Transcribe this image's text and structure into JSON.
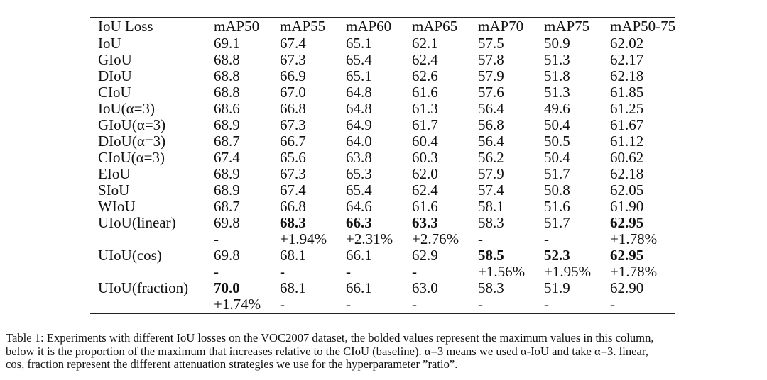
{
  "table": {
    "headers": [
      "IoU Loss",
      "mAP50",
      "mAP55",
      "mAP60",
      "mAP65",
      "mAP70",
      "mAP75",
      "mAP50-75"
    ],
    "rows": [
      {
        "cells": [
          "IoU",
          "69.1",
          "67.4",
          "65.1",
          "62.1",
          "57.5",
          "50.9",
          "62.02"
        ],
        "bold": []
      },
      {
        "cells": [
          "GIoU",
          "68.8",
          "67.3",
          "65.4",
          "62.4",
          "57.8",
          "51.3",
          "62.17"
        ],
        "bold": []
      },
      {
        "cells": [
          "DIoU",
          "68.8",
          "66.9",
          "65.1",
          "62.6",
          "57.9",
          "51.8",
          "62.18"
        ],
        "bold": []
      },
      {
        "cells": [
          "CIoU",
          "68.8",
          "67.0",
          "64.8",
          "61.6",
          "57.6",
          "51.3",
          "61.85"
        ],
        "bold": []
      },
      {
        "cells": [
          "IoU(α=3)",
          "68.6",
          "66.8",
          "64.8",
          "61.3",
          "56.4",
          "49.6",
          "61.25"
        ],
        "bold": []
      },
      {
        "cells": [
          "GIoU(α=3)",
          "68.9",
          "67.3",
          "64.9",
          "61.7",
          "56.8",
          "50.4",
          "61.67"
        ],
        "bold": []
      },
      {
        "cells": [
          "DIoU(α=3)",
          "68.7",
          "66.7",
          "64.0",
          "60.4",
          "56.4",
          "50.5",
          "61.12"
        ],
        "bold": []
      },
      {
        "cells": [
          "CIoU(α=3)",
          "67.4",
          "65.6",
          "63.8",
          "60.3",
          "56.2",
          "50.4",
          "60.62"
        ],
        "bold": []
      },
      {
        "cells": [
          "EIoU",
          "68.9",
          "67.3",
          "65.3",
          "62.0",
          "57.9",
          "51.7",
          "62.18"
        ],
        "bold": []
      },
      {
        "cells": [
          "SIoU",
          "68.9",
          "67.4",
          "65.4",
          "62.4",
          "57.4",
          "50.8",
          "62.05"
        ],
        "bold": []
      },
      {
        "cells": [
          "WIoU",
          "68.7",
          "66.8",
          "64.6",
          "61.6",
          "58.1",
          "51.6",
          "61.90"
        ],
        "bold": []
      },
      {
        "cells": [
          "UIoU(linear)",
          "69.8",
          "68.3",
          "66.3",
          "63.3",
          "58.3",
          "51.7",
          "62.95"
        ],
        "bold": [
          2,
          3,
          4,
          7
        ]
      },
      {
        "cells": [
          "",
          "-",
          "+1.94%",
          "+2.31%",
          "+2.76%",
          "-",
          "-",
          "+1.78%"
        ],
        "bold": []
      },
      {
        "cells": [
          "UIoU(cos)",
          "69.8",
          "68.1",
          "66.1",
          "62.9",
          "58.5",
          "52.3",
          "62.95"
        ],
        "bold": [
          5,
          6,
          7
        ]
      },
      {
        "cells": [
          "",
          "-",
          "-",
          "-",
          "-",
          "+1.56%",
          "+1.95%",
          "+1.78%"
        ],
        "bold": []
      },
      {
        "cells": [
          "UIoU(fraction)",
          "70.0",
          "68.1",
          "66.1",
          "63.0",
          "58.3",
          "51.9",
          "62.90"
        ],
        "bold": [
          1
        ]
      },
      {
        "cells": [
          "",
          "+1.74%",
          "-",
          "-",
          "-",
          "-",
          "-",
          "-"
        ],
        "bold": []
      }
    ]
  },
  "caption": {
    "line1": "Table 1: Experiments with different IoU losses on the VOC2007 dataset, the bolded values represent the maximum values in this column,",
    "line2": "below it is the proportion of the maximum that increases relative to the CIoU (baseline). α=3 means we used α-IoU and take α=3. linear,",
    "line3": "cos, fraction represent the different attenuation strategies we use for the hyperparameter ”ratio”."
  }
}
